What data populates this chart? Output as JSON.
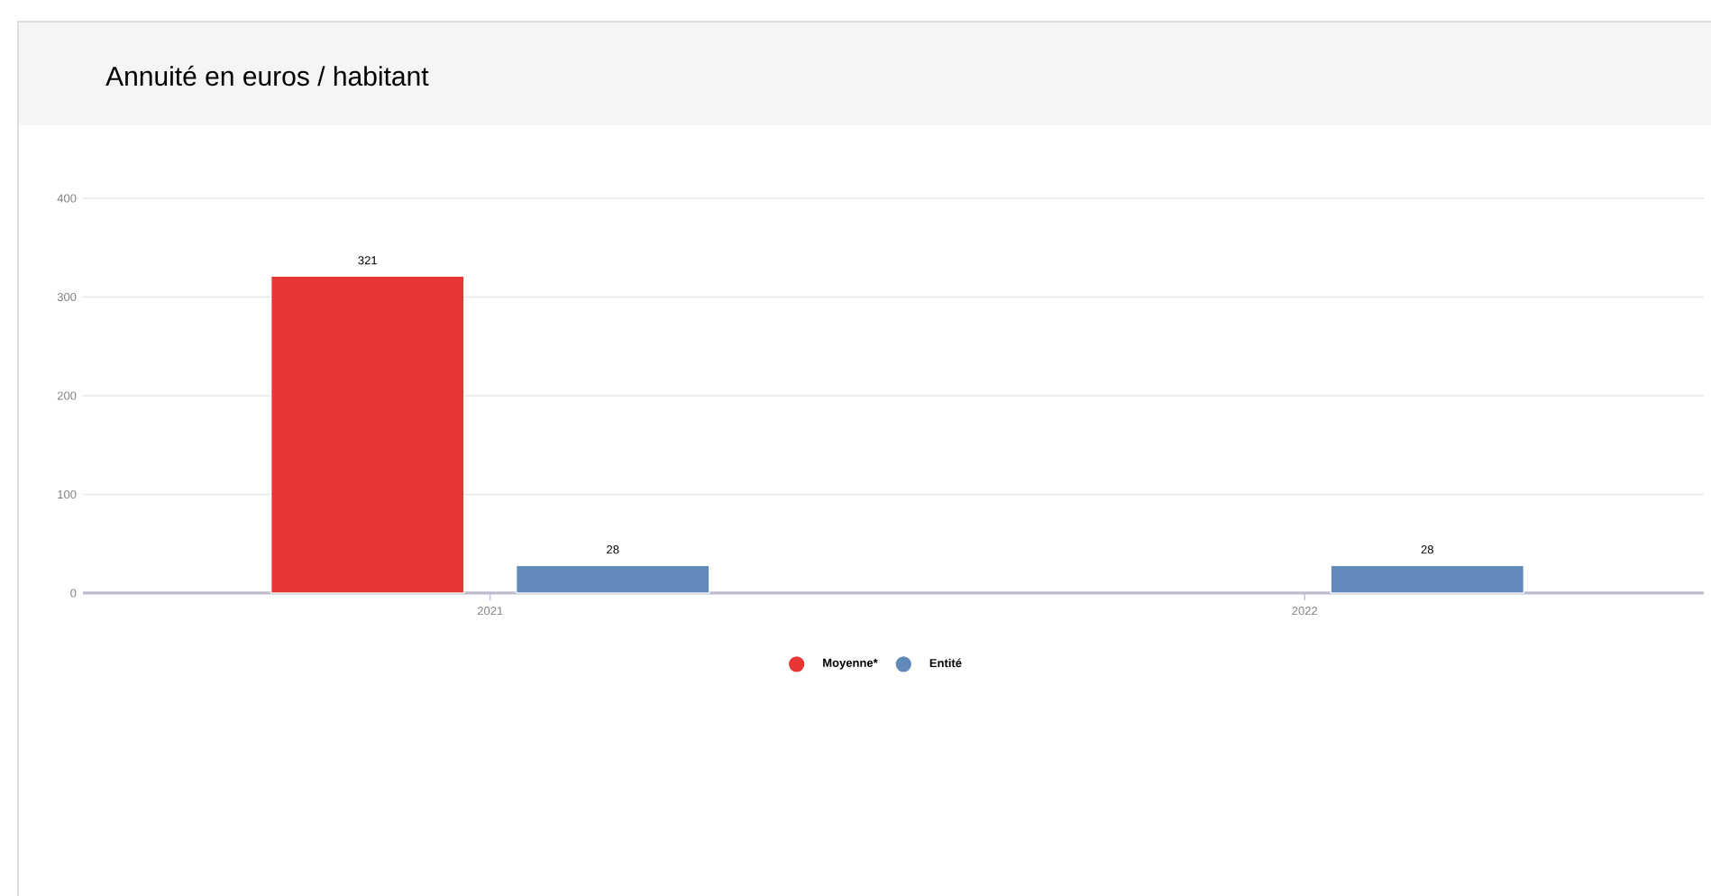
{
  "chart_data": {
    "type": "bar",
    "title": "Annuité en euros / habitant",
    "categories": [
      "2021",
      "2022"
    ],
    "series": [
      {
        "name": "Moyenne*",
        "color": "#e83535",
        "values": [
          321,
          null
        ]
      },
      {
        "name": "Entité",
        "color": "#6189b9",
        "values": [
          28,
          28
        ]
      }
    ],
    "ylim": [
      0,
      400
    ],
    "yticks": [
      0,
      100,
      200,
      300,
      400
    ],
    "grid": "y",
    "legend": "bottom",
    "data_labels": true
  }
}
